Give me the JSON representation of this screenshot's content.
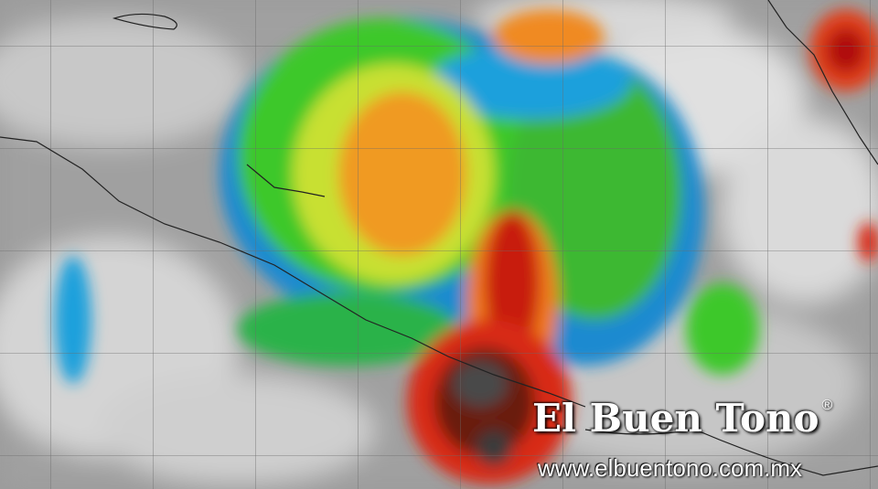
{
  "image": {
    "subject": "infrared-satellite-hurricane",
    "colors": {
      "cold_cloud_black": "#2a2a2a",
      "red": "#c81e0f",
      "orange": "#f07a1a",
      "yellow": "#e8e22a",
      "green": "#3ec82a",
      "cyan": "#1ea0dc",
      "blue": "#1450b4",
      "clear_gray": "#9a9a9a",
      "cloud_white": "#e6e6e6"
    }
  },
  "watermark": {
    "brand": "El Buen Tono",
    "registered": "®",
    "url": "www.elbuentono.com.mx"
  }
}
